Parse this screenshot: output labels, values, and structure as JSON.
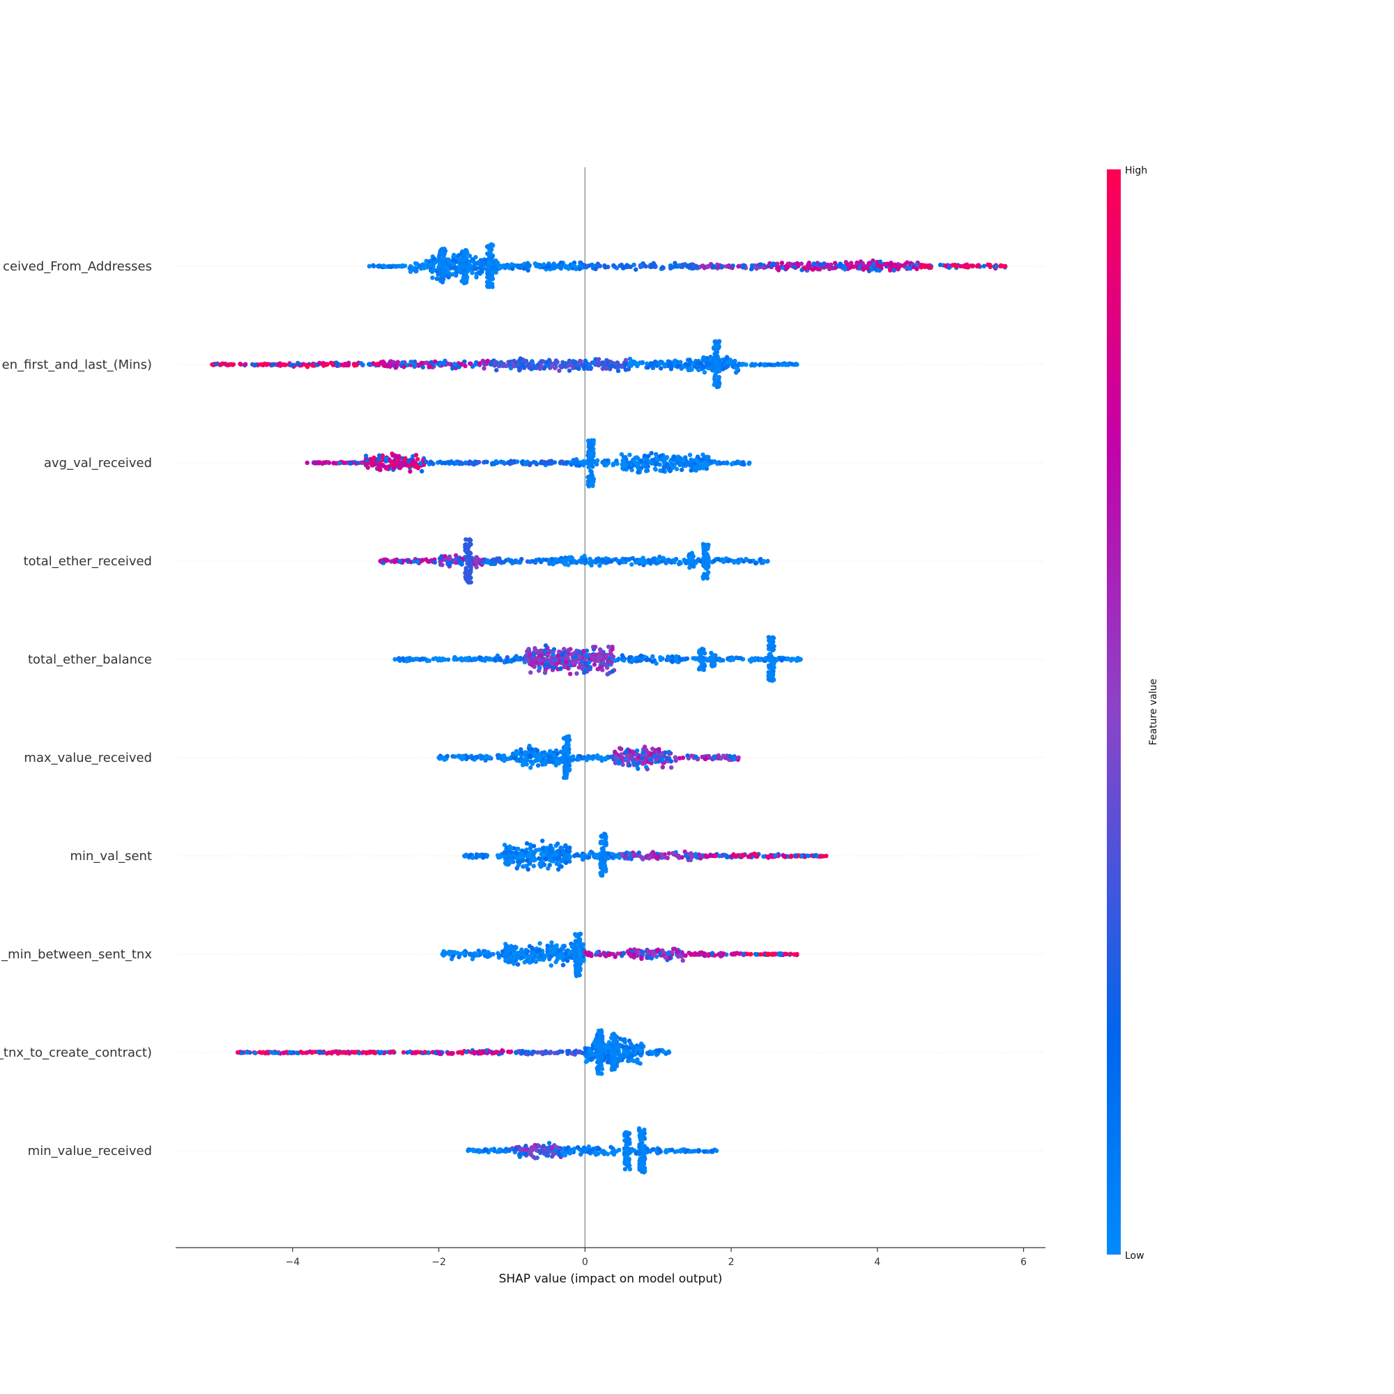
{
  "chart_data": {
    "type": "scatter",
    "subtype": "shap-beeswarm",
    "xlabel": "SHAP value (impact on model output)",
    "xlim": [
      -5.6,
      6.3
    ],
    "xticks": [
      -4,
      -2,
      0,
      2,
      4,
      6
    ],
    "xtick_labels": [
      "−4",
      "−2",
      "0",
      "2",
      "4",
      "6"
    ],
    "zero_line": 0,
    "colorbar": {
      "label": "Feature value",
      "high_label": "High",
      "low_label": "Low",
      "low_color": "#008bfb",
      "high_color": "#ff0052"
    },
    "features": [
      {
        "name": "ceived_From_Addresses",
        "min": -2.95,
        "max": 5.75,
        "segments": [
          {
            "x0": -2.95,
            "x1": -2.4,
            "w": 1,
            "v": 0.05
          },
          {
            "x0": -2.4,
            "x1": -2.1,
            "w": 6,
            "v": 0.05
          },
          {
            "x0": -2.1,
            "x1": -1.6,
            "w": 14,
            "v": 0.05
          },
          {
            "x0": -1.6,
            "x1": -1.2,
            "w": 10,
            "v": 0.05
          },
          {
            "x0": -1.2,
            "x1": 0.0,
            "w": 4,
            "v": 0.08
          },
          {
            "x0": 0.0,
            "x1": 1.5,
            "w": 3,
            "v": 0.2
          },
          {
            "x0": 1.5,
            "x1": 2.5,
            "w": 3,
            "v": 0.55
          },
          {
            "x0": 2.5,
            "x1": 4.6,
            "w": 5,
            "v": 0.75
          },
          {
            "x0": 4.6,
            "x1": 5.75,
            "w": 2,
            "v": 0.95
          }
        ],
        "spikes": [
          {
            "x": -1.95,
            "h": 0.3,
            "v": 0.05
          },
          {
            "x": -1.65,
            "h": 0.3,
            "v": 0.05
          },
          {
            "x": -1.3,
            "h": 0.38,
            "v": 0.05
          }
        ]
      },
      {
        "name": "en_first_and_last_(Mins)",
        "min": -5.1,
        "max": 2.9,
        "segments": [
          {
            "x0": -5.1,
            "x1": -4.2,
            "w": 1,
            "v": 0.95
          },
          {
            "x0": -4.2,
            "x1": -2.8,
            "w": 2,
            "v": 0.9
          },
          {
            "x0": -2.8,
            "x1": -1.3,
            "w": 4,
            "v": 0.7
          },
          {
            "x0": -1.3,
            "x1": 0.6,
            "w": 6,
            "v": 0.35
          },
          {
            "x0": 0.6,
            "x1": 1.4,
            "w": 5,
            "v": 0.1
          },
          {
            "x0": 1.4,
            "x1": 2.1,
            "w": 8,
            "v": 0.05
          },
          {
            "x0": 2.1,
            "x1": 2.9,
            "w": 1,
            "v": 0.05
          }
        ],
        "spikes": [
          {
            "x": 1.8,
            "h": 0.4,
            "v": 0.05
          }
        ]
      },
      {
        "name": "avg_val_received",
        "min": -3.8,
        "max": 2.25,
        "segments": [
          {
            "x0": -3.8,
            "x1": -3.0,
            "w": 1,
            "v": 0.75
          },
          {
            "x0": -3.0,
            "x1": -2.2,
            "w": 9,
            "v": 0.85
          },
          {
            "x0": -2.2,
            "x1": -0.2,
            "w": 2,
            "v": 0.2
          },
          {
            "x0": -0.2,
            "x1": 0.5,
            "w": 4,
            "v": 0.05
          },
          {
            "x0": 0.5,
            "x1": 1.7,
            "w": 10,
            "v": 0.05
          },
          {
            "x0": 1.7,
            "x1": 2.25,
            "w": 2,
            "v": 0.05
          }
        ],
        "spikes": [
          {
            "x": 0.08,
            "h": 0.4,
            "v": 0.05
          }
        ]
      },
      {
        "name": "total_ether_received",
        "min": -2.8,
        "max": 2.5,
        "segments": [
          {
            "x0": -2.8,
            "x1": -2.0,
            "w": 2,
            "v": 0.7
          },
          {
            "x0": -2.0,
            "x1": -1.4,
            "w": 6,
            "v": 0.6
          },
          {
            "x0": -1.4,
            "x1": -0.5,
            "w": 3,
            "v": 0.2
          },
          {
            "x0": -0.5,
            "x1": 0.3,
            "w": 5,
            "v": 0.05
          },
          {
            "x0": 0.3,
            "x1": 1.5,
            "w": 4,
            "v": 0.05
          },
          {
            "x0": 1.5,
            "x1": 2.5,
            "w": 3,
            "v": 0.05
          }
        ],
        "spikes": [
          {
            "x": -1.6,
            "h": 0.38,
            "v": 0.3
          },
          {
            "x": 1.65,
            "h": 0.3,
            "v": 0.05
          },
          {
            "x": 1.45,
            "h": 0.14,
            "v": 0.05
          }
        ]
      },
      {
        "name": "total_ether_balance",
        "min": -2.6,
        "max": 2.95,
        "segments": [
          {
            "x0": -2.6,
            "x1": -1.2,
            "w": 2,
            "v": 0.05
          },
          {
            "x0": -1.2,
            "x1": -0.8,
            "w": 4,
            "v": 0.15
          },
          {
            "x0": -0.8,
            "x1": 0.4,
            "w": 14,
            "v": 0.55
          },
          {
            "x0": 0.4,
            "x1": 1.3,
            "w": 4,
            "v": 0.1
          },
          {
            "x0": 1.3,
            "x1": 2.95,
            "w": 2,
            "v": 0.05
          }
        ],
        "spikes": [
          {
            "x": 2.55,
            "h": 0.38,
            "v": 0.05
          },
          {
            "x": 1.6,
            "h": 0.18,
            "v": 0.05
          },
          {
            "x": 1.75,
            "h": 0.12,
            "v": 0.05
          }
        ]
      },
      {
        "name": "max_value_received",
        "min": -2.0,
        "max": 2.1,
        "segments": [
          {
            "x0": -2.0,
            "x1": -1.0,
            "w": 3,
            "v": 0.05
          },
          {
            "x0": -1.0,
            "x1": -0.3,
            "w": 10,
            "v": 0.05
          },
          {
            "x0": -0.3,
            "x1": 0.4,
            "w": 3,
            "v": 0.08
          },
          {
            "x0": 0.4,
            "x1": 1.2,
            "w": 10,
            "v": 0.6
          },
          {
            "x0": 1.2,
            "x1": 2.1,
            "w": 3,
            "v": 0.6
          }
        ],
        "spikes": [
          {
            "x": -0.25,
            "h": 0.38,
            "v": 0.05
          }
        ]
      },
      {
        "name": "min_val_sent",
        "min": -1.65,
        "max": 3.3,
        "segments": [
          {
            "x0": -1.65,
            "x1": -1.1,
            "w": 2,
            "v": 0.05
          },
          {
            "x0": -1.1,
            "x1": -0.2,
            "w": 13,
            "v": 0.05
          },
          {
            "x0": -0.2,
            "x1": 0.5,
            "w": 4,
            "v": 0.1
          },
          {
            "x0": 0.5,
            "x1": 1.6,
            "w": 4,
            "v": 0.6
          },
          {
            "x0": 1.6,
            "x1": 2.8,
            "w": 2,
            "v": 0.85
          },
          {
            "x0": 2.8,
            "x1": 3.3,
            "w": 1,
            "v": 0.95
          }
        ],
        "spikes": [
          {
            "x": 0.25,
            "h": 0.38,
            "v": 0.05
          }
        ]
      },
      {
        "name": "_min_between_sent_tnx",
        "min": -1.95,
        "max": 2.9,
        "segments": [
          {
            "x0": -1.95,
            "x1": -1.1,
            "w": 4,
            "v": 0.05
          },
          {
            "x0": -1.1,
            "x1": 0.0,
            "w": 11,
            "v": 0.05
          },
          {
            "x0": 0.0,
            "x1": 0.6,
            "w": 3,
            "v": 0.7
          },
          {
            "x0": 0.6,
            "x1": 1.4,
            "w": 6,
            "v": 0.65
          },
          {
            "x0": 1.4,
            "x1": 2.2,
            "w": 2,
            "v": 0.75
          },
          {
            "x0": 2.2,
            "x1": 2.9,
            "w": 1,
            "v": 0.95
          }
        ],
        "spikes": [
          {
            "x": -0.1,
            "h": 0.38,
            "v": 0.05
          },
          {
            "x": -1.05,
            "h": 0.14,
            "v": 0.05
          }
        ]
      },
      {
        "name": "_tnx_to_create_contract)",
        "min": -4.75,
        "max": 1.15,
        "segments": [
          {
            "x0": -4.75,
            "x1": -2.0,
            "w": 1,
            "v": 0.95
          },
          {
            "x0": -2.0,
            "x1": -1.0,
            "w": 2,
            "v": 0.85
          },
          {
            "x0": -1.0,
            "x1": 0.0,
            "w": 2,
            "v": 0.3
          },
          {
            "x0": 0.0,
            "x1": 0.8,
            "w": 14,
            "v": 0.05
          },
          {
            "x0": 0.8,
            "x1": 1.15,
            "w": 3,
            "v": 0.05
          }
        ],
        "spikes": [
          {
            "x": 0.2,
            "h": 0.38,
            "v": 0.05
          },
          {
            "x": 0.4,
            "h": 0.33,
            "v": 0.05
          }
        ]
      },
      {
        "name": "min_value_received",
        "min": -1.6,
        "max": 1.8,
        "segments": [
          {
            "x0": -1.6,
            "x1": -1.0,
            "w": 2,
            "v": 0.05
          },
          {
            "x0": -1.0,
            "x1": -0.3,
            "w": 8,
            "v": 0.5
          },
          {
            "x0": -0.3,
            "x1": 0.4,
            "w": 4,
            "v": 0.05
          },
          {
            "x0": 0.4,
            "x1": 1.0,
            "w": 3,
            "v": 0.05
          },
          {
            "x0": 1.0,
            "x1": 1.8,
            "w": 2,
            "v": 0.05
          }
        ],
        "spikes": [
          {
            "x": 0.58,
            "h": 0.32,
            "v": 0.05
          },
          {
            "x": 0.78,
            "h": 0.38,
            "v": 0.05
          }
        ]
      }
    ]
  }
}
